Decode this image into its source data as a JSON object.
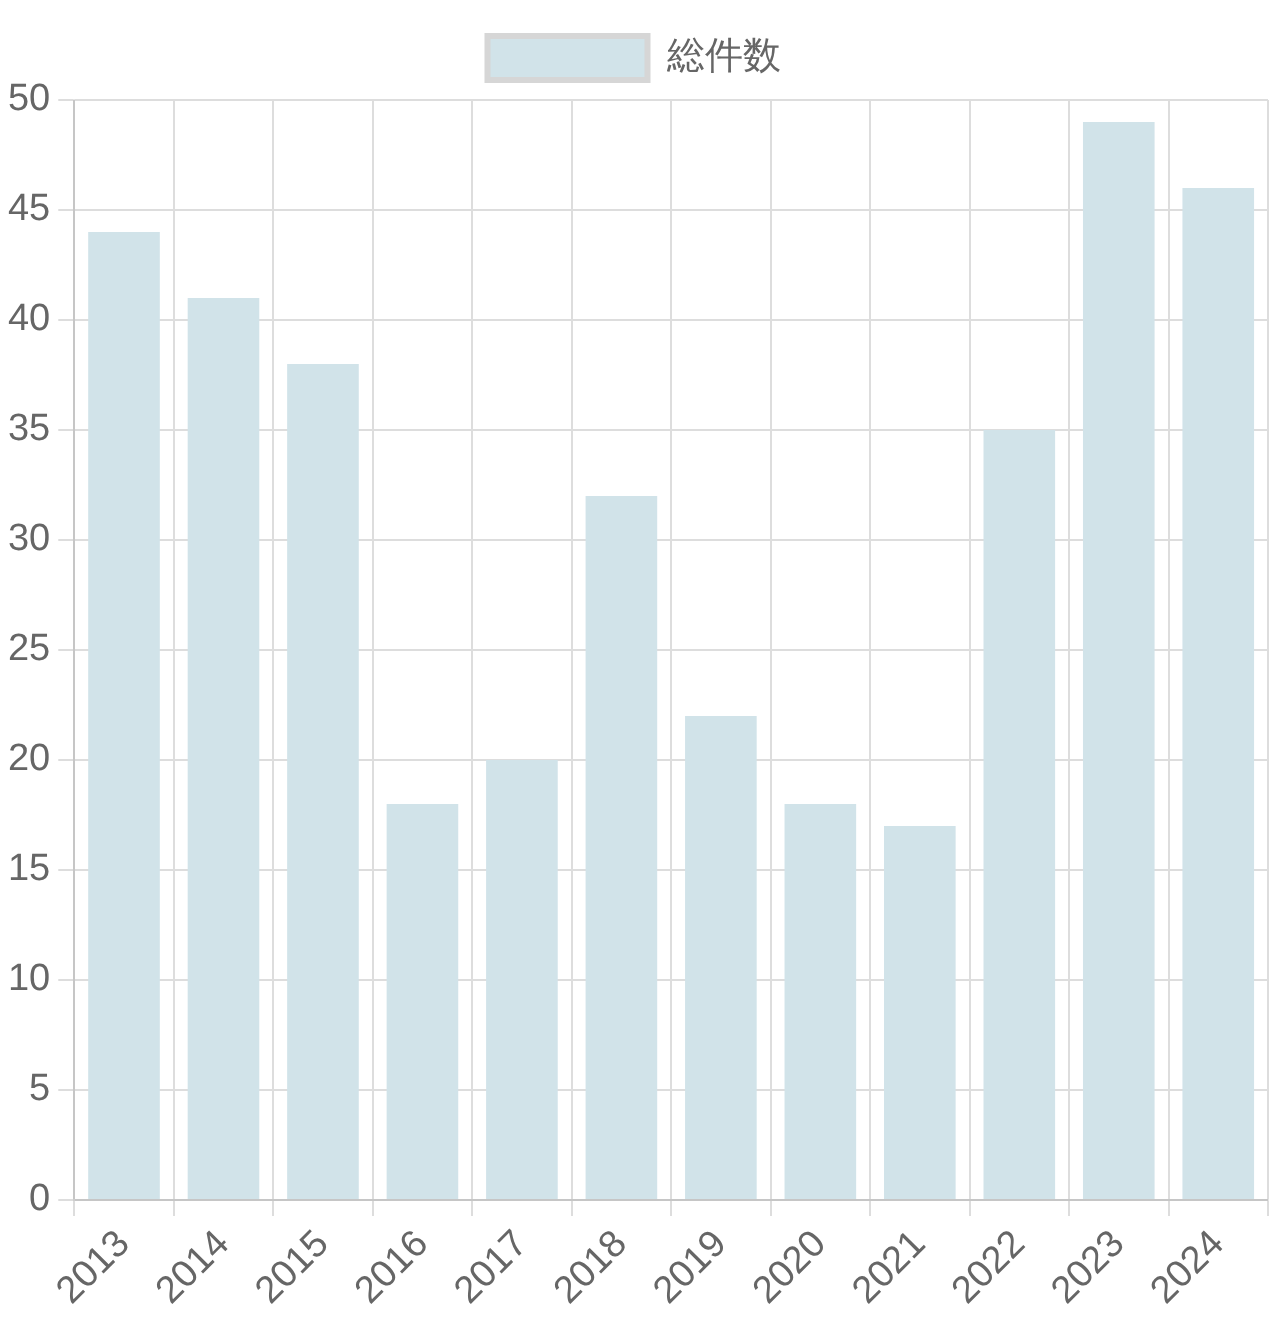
{
  "chart_data": {
    "type": "bar",
    "categories": [
      "2013",
      "2014",
      "2015",
      "2016",
      "2017",
      "2018",
      "2019",
      "2020",
      "2021",
      "2022",
      "2023",
      "2024"
    ],
    "series": [
      {
        "name": "総件数",
        "color": "#d1e3e9",
        "values": [
          44,
          41,
          38,
          18,
          20,
          32,
          22,
          18,
          17,
          35,
          49,
          46
        ]
      }
    ],
    "ylim": [
      0,
      50
    ],
    "yticks": [
      0,
      5,
      10,
      15,
      20,
      25,
      30,
      35,
      40,
      45,
      50
    ],
    "grid": true,
    "legend": "top"
  }
}
